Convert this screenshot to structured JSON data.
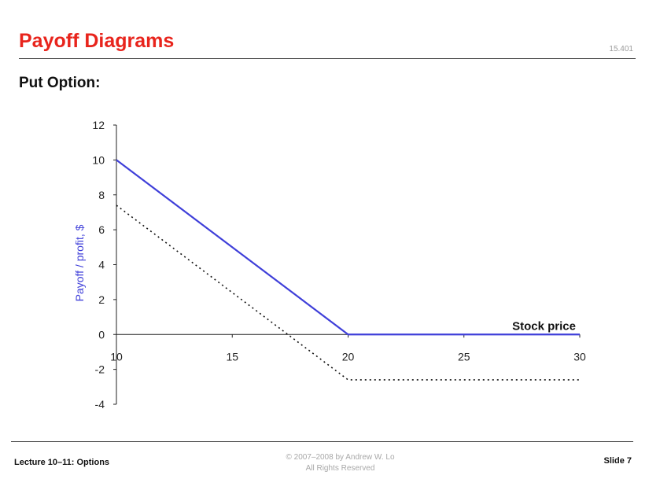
{
  "slide": {
    "title": "Payoff Diagrams",
    "course_number": "15.401",
    "subtitle": "Put Option:"
  },
  "footer": {
    "left": "Lecture 10–11:  Options",
    "copyright": "© 2007–2008 by Andrew W. Lo",
    "rights": "All Rights Reserved",
    "right": "Slide 7"
  },
  "chart_data": {
    "type": "line",
    "xlabel": "Stock price",
    "ylabel": "Payoff / profit, $",
    "xlim": [
      10,
      30
    ],
    "ylim": [
      -4,
      12
    ],
    "xticks": [
      10,
      15,
      20,
      25,
      30
    ],
    "yticks": [
      -4,
      -2,
      0,
      2,
      4,
      6,
      8,
      10,
      12
    ],
    "grid": false,
    "series": [
      {
        "style": "solid",
        "color": "#3f3fd9",
        "x": [
          10,
          20,
          30
        ],
        "y": [
          10,
          0,
          0
        ]
      },
      {
        "style": "dotted",
        "color": "#111111",
        "x": [
          10,
          20,
          30
        ],
        "y": [
          7.4,
          -2.6,
          -2.6
        ]
      }
    ]
  }
}
